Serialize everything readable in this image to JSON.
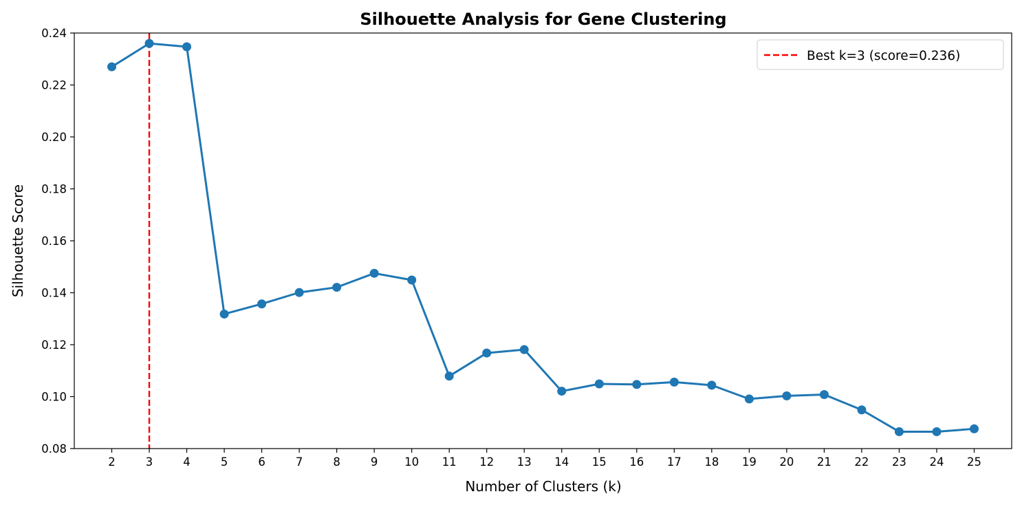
{
  "chart_data": {
    "type": "line",
    "title": "Silhouette Analysis for Gene Clustering",
    "xlabel": "Number of Clusters (k)",
    "ylabel": "Silhouette Score",
    "x": [
      2,
      3,
      4,
      5,
      6,
      7,
      8,
      9,
      10,
      11,
      12,
      13,
      14,
      15,
      16,
      17,
      18,
      19,
      20,
      21,
      22,
      23,
      24,
      25
    ],
    "series": [
      {
        "values": [
          0.227,
          0.236,
          0.2347,
          0.1318,
          0.1357,
          0.1401,
          0.1421,
          0.1475,
          0.1449,
          0.1079,
          0.1168,
          0.1181,
          0.1021,
          0.1049,
          0.1047,
          0.1056,
          0.1044,
          0.0991,
          0.1003,
          0.1008,
          0.0949,
          0.0865,
          0.0865,
          0.0876
        ],
        "color": "#1f77b4",
        "marker": "circle"
      }
    ],
    "reference_line": {
      "x": 3,
      "label": "Best k=3 (score=0.236)",
      "color": "#ff0000",
      "style": "dashed"
    },
    "xlim": [
      1,
      26
    ],
    "ylim": [
      0.08,
      0.24
    ],
    "xticks": [
      "2",
      "3",
      "4",
      "5",
      "6",
      "7",
      "8",
      "9",
      "10",
      "11",
      "12",
      "13",
      "14",
      "15",
      "16",
      "17",
      "18",
      "19",
      "20",
      "21",
      "22",
      "23",
      "24",
      "25"
    ],
    "yticks": [
      "0.08",
      "0.10",
      "0.12",
      "0.14",
      "0.16",
      "0.18",
      "0.20",
      "0.22",
      "0.24"
    ],
    "grid": false,
    "legend_position": "top-right"
  }
}
